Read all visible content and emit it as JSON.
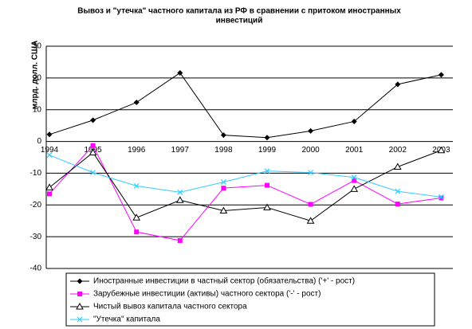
{
  "chart_data": {
    "type": "line",
    "title": [
      "Вывоз и \"утечка\" частного капитала из РФ в сравнении с притоком иностранных",
      "инвестиций"
    ],
    "y_label": "млрд. долл. США",
    "categories": [
      "1994",
      "1995",
      "1996",
      "1997",
      "1998",
      "1999",
      "2000",
      "2001",
      "2002",
      "2003"
    ],
    "ylim": [
      -40,
      30
    ],
    "yticks": [
      -40,
      -30,
      -20,
      -10,
      0,
      10,
      20,
      30
    ],
    "grid": true,
    "series": [
      {
        "name": "Иностранные инвестиции в частный сектор (обязательства)  ('+' - рост)",
        "color": "#000000",
        "marker": "diamond",
        "values": [
          2.2,
          6.7,
          12.3,
          21.6,
          2,
          1.2,
          3.3,
          6.3,
          18,
          21
        ]
      },
      {
        "name": "Зарубежные инвестиции (активы) частного сектора ('-' - рост)",
        "color": "#ff00ff",
        "marker": "square",
        "values": [
          -16.5,
          -1.3,
          -28.5,
          -31.2,
          -14.7,
          -13.8,
          -19.8,
          -12.3,
          -19.7,
          -17.8
        ]
      },
      {
        "name": "Чистый вывоз капитала частного сектора",
        "color": "#000000",
        "marker": "triangle",
        "values": [
          -14.5,
          -3.5,
          -24,
          -18.5,
          -21.8,
          -20.8,
          -25,
          -15,
          -8,
          -2.8
        ]
      },
      {
        "name": "\"Утечка\" капитала",
        "color": "#33ccff",
        "marker": "x",
        "values": [
          -4.3,
          -9.8,
          -14,
          -16,
          -12.8,
          -9.3,
          -9.8,
          -11.3,
          -15.7,
          -17.5
        ]
      }
    ]
  }
}
